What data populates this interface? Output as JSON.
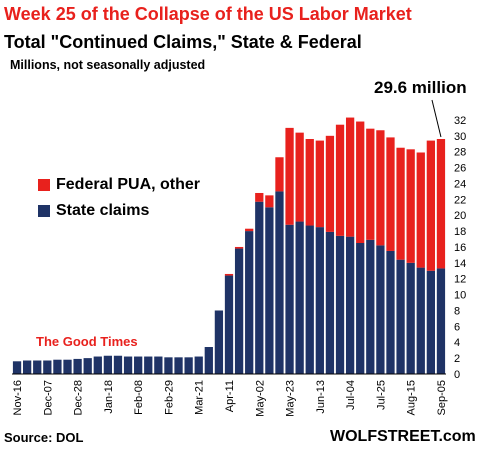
{
  "header": {
    "title": "Week 25 of the Collapse of the US Labor Market",
    "subtitle": "Total \"Continued Claims,\" State & Federal",
    "units": "Millions, not seasonally adjusted"
  },
  "callout": "29.6 million",
  "annotation": "The Good Times",
  "footer": {
    "source": "Source: DOL",
    "brand": "WOLFSTREET.com"
  },
  "colors": {
    "state": "#1f3366",
    "federal": "#e8211d",
    "title": "#e8211d"
  },
  "chart_data": {
    "type": "bar",
    "stacked": true,
    "x": [
      "Nov-16",
      "Nov-23",
      "Nov-30",
      "Dec-07",
      "Dec-14",
      "Dec-21",
      "Dec-28",
      "Jan-04",
      "Jan-11",
      "Jan-18",
      "Jan-25",
      "Feb-01",
      "Feb-08",
      "Feb-15",
      "Feb-22",
      "Feb-29",
      "Mar-07",
      "Mar-14",
      "Mar-21",
      "Mar-28",
      "Apr-04",
      "Apr-11",
      "Apr-18",
      "Apr-25",
      "May-02",
      "May-09",
      "May-16",
      "May-23",
      "May-30",
      "Jun-06",
      "Jun-13",
      "Jun-20",
      "Jun-27",
      "Jul-04",
      "Jul-11",
      "Jul-18",
      "Jul-25",
      "Aug-01",
      "Aug-08",
      "Aug-15",
      "Aug-22",
      "Aug-29",
      "Sep-05"
    ],
    "xtick_labels": [
      "Nov-16",
      "Dec-07",
      "Dec-28",
      "Jan-18",
      "Feb-08",
      "Feb-29",
      "Mar-21",
      "Apr-11",
      "May-02",
      "May-23",
      "Jun-13",
      "Jul-04",
      "Jul-25",
      "Aug-15",
      "Sep-05"
    ],
    "series": [
      {
        "name": "State claims",
        "values": [
          1.6,
          1.7,
          1.7,
          1.7,
          1.8,
          1.8,
          1.9,
          2.0,
          2.2,
          2.3,
          2.3,
          2.2,
          2.2,
          2.2,
          2.2,
          2.1,
          2.1,
          2.1,
          2.2,
          3.4,
          8.0,
          12.4,
          15.8,
          18.0,
          21.7,
          21.0,
          23.0,
          18.8,
          19.2,
          18.7,
          18.5,
          17.9,
          17.4,
          17.3,
          16.5,
          16.9,
          16.2,
          15.5,
          14.4,
          14.0,
          13.4,
          13.0,
          13.3
        ]
      },
      {
        "name": "Federal PUA, other",
        "values": [
          0,
          0,
          0,
          0,
          0,
          0,
          0,
          0,
          0,
          0,
          0,
          0,
          0,
          0,
          0,
          0,
          0,
          0,
          0,
          0,
          0,
          0.2,
          0.2,
          0.3,
          1.1,
          1.5,
          4.3,
          12.2,
          11.2,
          10.9,
          10.9,
          12.1,
          14.0,
          15.0,
          15.3,
          14.0,
          14.5,
          14.3,
          14.1,
          14.3,
          14.5,
          16.4,
          16.3
        ]
      }
    ],
    "ylim": [
      0,
      33
    ],
    "yticks": [
      0,
      2,
      4,
      6,
      8,
      10,
      12,
      14,
      16,
      18,
      20,
      22,
      24,
      26,
      28,
      30,
      32
    ],
    "grid": false,
    "legend_position": "middle-left"
  }
}
